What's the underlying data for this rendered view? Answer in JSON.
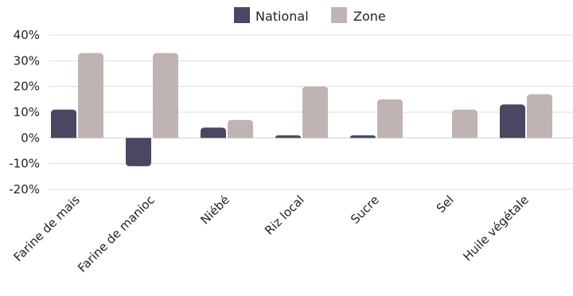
{
  "chart_data": {
    "type": "bar",
    "categories": [
      "Farine de mais",
      "Farine de manioc",
      "Niébé",
      "Riz local",
      "Sucre",
      "Sel",
      "Huile végétale"
    ],
    "series": [
      {
        "name": "National",
        "color": "#4b4662",
        "values": [
          11,
          -11,
          4,
          1,
          1,
          0,
          13
        ]
      },
      {
        "name": "Zone",
        "color": "#c0b4b3",
        "values": [
          33,
          33,
          7,
          20,
          15,
          11,
          17
        ]
      }
    ],
    "ylim": [
      -20,
      40
    ],
    "yticks": [
      -20,
      -10,
      0,
      10,
      20,
      30,
      40
    ],
    "ytick_labels": [
      "-20%",
      "-10%",
      "0%",
      "10%",
      "20%",
      "30%",
      "40%"
    ],
    "grid": true,
    "legend_position": "top-center"
  }
}
